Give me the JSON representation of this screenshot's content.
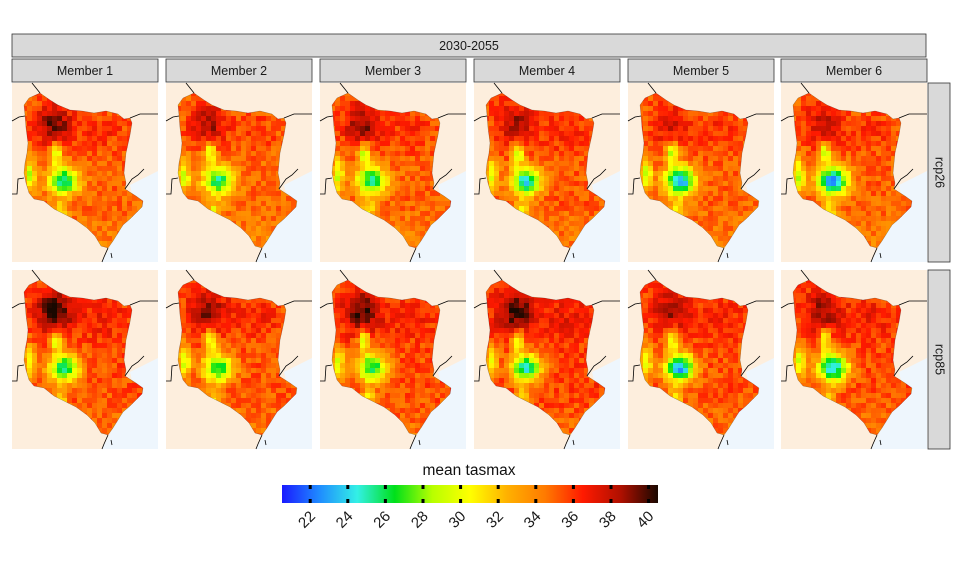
{
  "chart_data": {
    "type": "heatmap",
    "title": "",
    "xlabel": "",
    "ylabel": "",
    "period_label": "2030-2055",
    "columns": [
      "Member 1",
      "Member 2",
      "Member 3",
      "Member 4",
      "Member 5",
      "Member 6"
    ],
    "rows": [
      "rcp26",
      "rcp85"
    ],
    "legend": {
      "title": "mean tasmax",
      "ticks": [
        22,
        24,
        26,
        28,
        30,
        32,
        34,
        36,
        38,
        40
      ],
      "range": [
        20.5,
        40.5
      ],
      "colors": [
        "#1a1aff",
        "#1f8cff",
        "#33f0e6",
        "#00e01a",
        "#b8ff00",
        "#ffff00",
        "#ffb000",
        "#ff7a00",
        "#ff1a00",
        "#b01000",
        "#1a0800"
      ]
    },
    "panels": [
      {
        "column": "Member 1",
        "row": "rcp26",
        "north_hot_max": 39.5,
        "highland_min": 25.0,
        "plain_mean": 35.0
      },
      {
        "column": "Member 2",
        "row": "rcp26",
        "north_hot_max": 38.5,
        "highland_min": 25.5,
        "plain_mean": 34.8
      },
      {
        "column": "Member 3",
        "row": "rcp26",
        "north_hot_max": 39.0,
        "highland_min": 25.0,
        "plain_mean": 35.0
      },
      {
        "column": "Member 4",
        "row": "rcp26",
        "north_hot_max": 38.5,
        "highland_min": 24.0,
        "plain_mean": 35.2
      },
      {
        "column": "Member 5",
        "row": "rcp26",
        "north_hot_max": 37.5,
        "highland_min": 22.5,
        "plain_mean": 35.0
      },
      {
        "column": "Member 6",
        "row": "rcp26",
        "north_hot_max": 38.0,
        "highland_min": 22.5,
        "plain_mean": 35.0
      },
      {
        "column": "Member 1",
        "row": "rcp85",
        "north_hot_max": 40.3,
        "highland_min": 25.5,
        "plain_mean": 35.5
      },
      {
        "column": "Member 2",
        "row": "rcp85",
        "north_hot_max": 39.0,
        "highland_min": 26.0,
        "plain_mean": 35.3
      },
      {
        "column": "Member 3",
        "row": "rcp85",
        "north_hot_max": 39.8,
        "highland_min": 25.5,
        "plain_mean": 35.5
      },
      {
        "column": "Member 4",
        "row": "rcp85",
        "north_hot_max": 40.0,
        "highland_min": 24.5,
        "plain_mean": 35.8
      },
      {
        "column": "Member 5",
        "row": "rcp85",
        "north_hot_max": 38.5,
        "highland_min": 23.0,
        "plain_mean": 35.5
      },
      {
        "column": "Member 6",
        "row": "rcp85",
        "north_hot_max": 38.8,
        "highland_min": 23.5,
        "plain_mean": 35.5
      }
    ]
  }
}
